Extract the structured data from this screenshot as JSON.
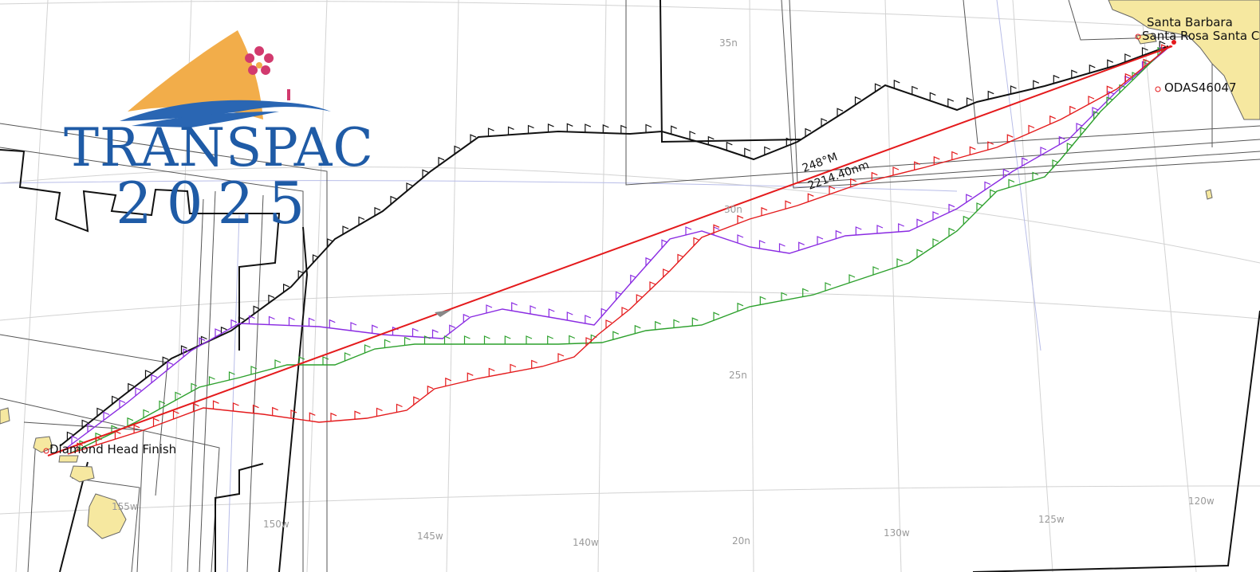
{
  "logo": {
    "wordmark": "TRANSPAC",
    "year": "2025",
    "icon": "sail-flower-logo-icon",
    "colors": {
      "sail": "#f2ad4a",
      "water": "#2a66b3",
      "flower": "#d23a6e",
      "text": "#1f5ba6"
    }
  },
  "grid_labels": {
    "lat_35": "35n",
    "lat_30": "30n",
    "lat_25": "25n",
    "lat_20": "20n",
    "lon_150": "150w",
    "lon_145": "145w",
    "lon_140": "140w",
    "lon_130": "130w",
    "lon_125": "125w",
    "lon_120": "120w",
    "lon_155": "155w"
  },
  "places": {
    "santa_barbara": "Santa Barbara",
    "santa_rosa": "Santa Rosa Santa C",
    "oda_buoy": "ODAS46047",
    "hawaii_overlap": "Diamond Head Finish"
  },
  "rhumb_line": {
    "bearing": "248°M",
    "distance": "2214.40nm",
    "color": "#e41a1c"
  },
  "track_colors": {
    "black": "#111111",
    "purple": "#8a2be2",
    "green": "#2ca02c",
    "red": "#e41a1c"
  },
  "land_color": "#f6e8a0"
}
